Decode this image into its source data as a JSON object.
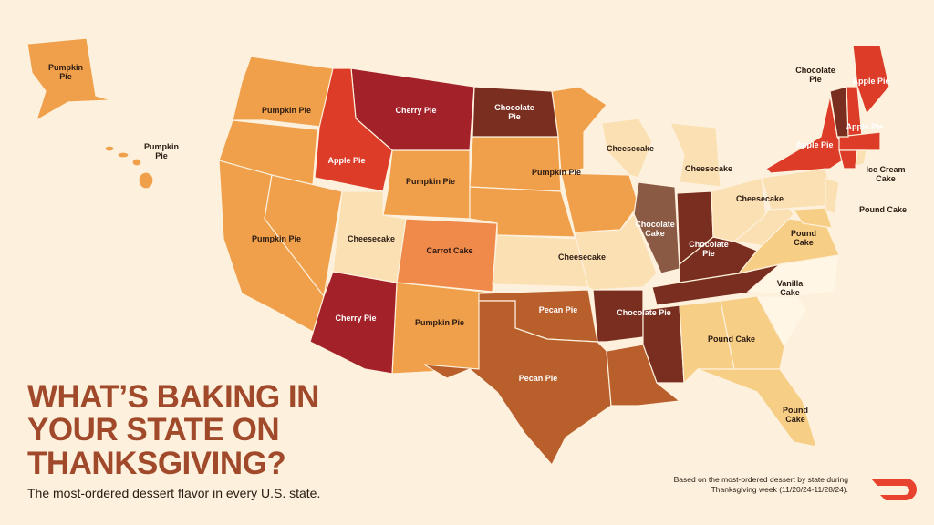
{
  "title": "WHAT’S BAKING IN YOUR STATE ON THANKSGIVING?",
  "subtitle": "The most-ordered dessert flavor in every U.S. state.",
  "footnote": "Based on the most-ordered dessert by state during Thanksgiving week (11/20/24-11/28/24).",
  "labels": [
    {
      "text": "Pumpkin Pie"
    },
    {
      "text": "Pumpkin Pie"
    },
    {
      "text": "Pumpkin Pie"
    },
    {
      "text": "Cherry Pie"
    },
    {
      "text": "Chocolate Pie"
    },
    {
      "text": "Apple Pie"
    },
    {
      "text": "Pumpkin Pie"
    },
    {
      "text": "Pumpkin Pie"
    },
    {
      "text": "Pumpkin Pie"
    },
    {
      "text": "Cheesecake"
    },
    {
      "text": "Carrot Cake"
    },
    {
      "text": "Cheesecake"
    },
    {
      "text": "Cherry Pie"
    },
    {
      "text": "Pumpkin Pie"
    },
    {
      "text": "Pecan Pie"
    },
    {
      "text": "Pecan Pie"
    },
    {
      "text": "Cheesecake"
    },
    {
      "text": "Cheesecake"
    },
    {
      "text": "Chocolate Cake"
    },
    {
      "text": "Chocolate Pie"
    },
    {
      "text": "Chocolate Pie"
    },
    {
      "text": "Cheesecake"
    },
    {
      "text": "Pound Cake"
    },
    {
      "text": "Vanilla Cake"
    },
    {
      "text": "Pound Cake"
    },
    {
      "text": "Pound Cake"
    },
    {
      "text": "Chocolate Pie"
    },
    {
      "text": "Apple Pie"
    },
    {
      "text": "Apple Pie"
    },
    {
      "text": "Apple Pie"
    },
    {
      "text": "Ice Cream Cake"
    },
    {
      "text": "Pound Cake"
    }
  ]
}
